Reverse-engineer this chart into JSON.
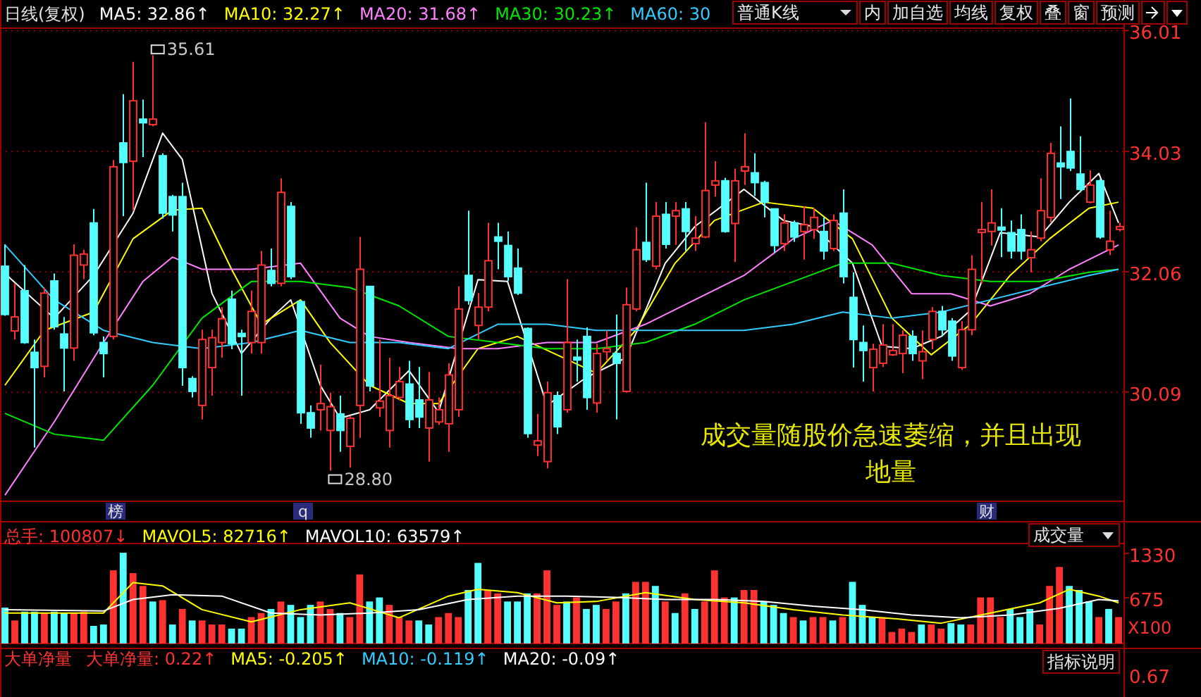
{
  "chart_data": [
    {
      "type": "candlestick",
      "title": "日线(复权)",
      "legend": "top left",
      "grid": "y",
      "categories": [
        null,
        null,
        null,
        null,
        null,
        null,
        null,
        null,
        null,
        null,
        null,
        null,
        null,
        null,
        null,
        null,
        null,
        null,
        null,
        null,
        null,
        null,
        null,
        null,
        null,
        null,
        null,
        null,
        null,
        null,
        null,
        null,
        null,
        null,
        null,
        null,
        null,
        null,
        null,
        null,
        null,
        null,
        null,
        null,
        null,
        null,
        null,
        null,
        null,
        null,
        null,
        null,
        null,
        null,
        null,
        null,
        null,
        null,
        null,
        null,
        null,
        null,
        null,
        null,
        null,
        null,
        null,
        null,
        null,
        null,
        null,
        null,
        null,
        null,
        null,
        null,
        null,
        null,
        null,
        null,
        null,
        null,
        null,
        null,
        null,
        null,
        null,
        null,
        null,
        null,
        null,
        null,
        null,
        null,
        null,
        null,
        null,
        null,
        null,
        null,
        null,
        null,
        null,
        null,
        null,
        null,
        null,
        null,
        null,
        null,
        null,
        null,
        null,
        null
      ],
      "ohlc": [
        [
          32.15,
          32.51,
          31.34,
          31.36
        ],
        [
          31.09,
          31.87,
          30.95,
          31.32
        ],
        [
          31.75,
          32.17,
          30.88,
          30.9
        ],
        [
          30.74,
          30.95,
          29.18,
          30.49
        ],
        [
          30.51,
          31.8,
          30.33,
          31.71
        ],
        [
          31.91,
          32.03,
          31.11,
          31.16
        ],
        [
          31.04,
          31.32,
          30.1,
          30.81
        ],
        [
          30.81,
          32.51,
          30.6,
          32.33
        ],
        [
          32.17,
          32.42,
          31.94,
          32.35
        ],
        [
          32.86,
          33.09,
          31.02,
          31.06
        ],
        [
          30.9,
          31.0,
          30.33,
          30.72
        ],
        [
          31.0,
          33.89,
          30.95,
          33.78
        ],
        [
          34.17,
          34.97,
          32.97,
          33.85
        ],
        [
          33.87,
          35.5,
          33.06,
          34.86
        ],
        [
          34.56,
          34.88,
          33.94,
          34.5
        ],
        [
          34.47,
          35.61,
          34.44,
          34.56
        ],
        [
          33.96,
          34.0,
          32.93,
          33.02
        ],
        [
          33.29,
          33.32,
          32.72,
          32.99
        ],
        [
          33.29,
          33.52,
          30.19,
          30.49
        ],
        [
          30.31,
          30.35,
          30.0,
          30.1
        ],
        [
          29.87,
          31.11,
          29.64,
          30.95
        ],
        [
          30.49,
          31.11,
          30.03,
          30.98
        ],
        [
          30.9,
          31.48,
          30.65,
          31.29
        ],
        [
          31.61,
          31.75,
          30.79,
          30.88
        ],
        [
          31.05,
          31.11,
          30.03,
          31.0
        ],
        [
          30.9,
          31.75,
          30.72,
          31.41
        ],
        [
          30.9,
          32.4,
          30.72,
          32.17
        ],
        [
          32.08,
          32.44,
          31.82,
          31.87
        ],
        [
          31.87,
          33.59,
          31.82,
          33.36
        ],
        [
          33.13,
          33.2,
          31.94,
          31.98
        ],
        [
          31.57,
          31.59,
          29.57,
          29.75
        ],
        [
          29.75,
          29.87,
          29.34,
          29.5
        ],
        [
          29.8,
          30.54,
          29.46,
          29.9
        ],
        [
          29.46,
          30.08,
          28.8,
          29.85
        ],
        [
          29.73,
          30.03,
          29.11,
          29.46
        ],
        [
          29.2,
          29.7,
          28.85,
          29.66
        ],
        [
          29.87,
          32.63,
          29.34,
          32.1
        ],
        [
          31.82,
          31.82,
          30.1,
          30.19
        ],
        [
          29.83,
          30.95,
          29.68,
          29.94
        ],
        [
          29.46,
          30.65,
          29.18,
          30.03
        ],
        [
          30.0,
          30.5,
          29.95,
          30.26
        ],
        [
          30.22,
          30.6,
          29.5,
          29.64
        ],
        [
          29.96,
          30.5,
          29.5,
          29.68
        ],
        [
          29.5,
          30.42,
          28.95,
          29.96
        ],
        [
          29.6,
          30.0,
          29.55,
          29.8
        ],
        [
          29.57,
          30.56,
          29.11,
          30.37
        ],
        [
          29.8,
          31.82,
          29.68,
          31.45
        ],
        [
          32.0,
          33.06,
          31.52,
          31.59
        ],
        [
          31.18,
          31.71,
          30.95,
          31.48
        ],
        [
          31.48,
          32.86,
          31.41,
          32.24
        ],
        [
          32.63,
          32.86,
          32.1,
          32.56
        ],
        [
          32.49,
          32.72,
          31.91,
          31.98
        ],
        [
          32.12,
          32.44,
          31.68,
          31.71
        ],
        [
          31.13,
          31.15,
          29.34,
          29.41
        ],
        [
          29.22,
          29.73,
          29.04,
          29.29
        ],
        [
          28.95,
          30.26,
          28.84,
          30.08
        ],
        [
          30.03,
          30.1,
          29.4,
          29.52
        ],
        [
          29.8,
          31.94,
          29.75,
          30.9
        ],
        [
          30.66,
          30.95,
          30.26,
          30.62
        ],
        [
          31.0,
          31.15,
          29.8,
          30.0
        ],
        [
          29.91,
          30.88,
          29.75,
          30.72
        ],
        [
          30.75,
          31.1,
          30.6,
          30.8
        ],
        [
          30.72,
          31.36,
          29.64,
          30.56
        ],
        [
          30.1,
          31.8,
          30.08,
          31.52
        ],
        [
          31.45,
          32.79,
          31.41,
          32.42
        ],
        [
          32.54,
          33.52,
          32.22,
          32.26
        ],
        [
          32.15,
          33.2,
          32.1,
          32.97
        ],
        [
          33.0,
          33.2,
          32.44,
          32.51
        ],
        [
          32.97,
          33.2,
          32.5,
          33.06
        ],
        [
          33.09,
          33.2,
          32.4,
          32.72
        ],
        [
          32.52,
          32.97,
          32.4,
          32.61
        ],
        [
          32.63,
          34.51,
          32.61,
          33.39
        ],
        [
          33.48,
          33.87,
          33.29,
          33.55
        ],
        [
          33.55,
          33.6,
          32.7,
          32.72
        ],
        [
          32.85,
          33.75,
          32.22,
          33.55
        ],
        [
          33.71,
          34.33,
          33.48,
          33.78
        ],
        [
          33.68,
          34.0,
          33.3,
          33.52
        ],
        [
          33.52,
          33.55,
          32.95,
          33.2
        ],
        [
          33.09,
          33.09,
          32.37,
          32.49
        ],
        [
          32.52,
          33.0,
          32.4,
          32.86
        ],
        [
          32.86,
          32.9,
          32.55,
          32.63
        ],
        [
          32.72,
          33.13,
          32.26,
          32.83
        ],
        [
          32.75,
          33.1,
          32.6,
          32.95
        ],
        [
          32.72,
          32.95,
          32.26,
          32.4
        ],
        [
          32.44,
          33.0,
          32.4,
          32.9
        ],
        [
          33.02,
          33.41,
          31.87,
          31.98
        ],
        [
          31.64,
          32.05,
          30.49,
          30.95
        ],
        [
          30.9,
          31.18,
          30.26,
          30.77
        ],
        [
          30.49,
          30.88,
          30.1,
          30.79
        ],
        [
          30.56,
          31.2,
          30.5,
          30.86
        ],
        [
          30.7,
          31.2,
          30.68,
          30.77
        ],
        [
          30.72,
          31.1,
          30.4,
          31.02
        ],
        [
          31.0,
          31.1,
          30.6,
          30.72
        ],
        [
          30.6,
          31.1,
          30.3,
          30.75
        ],
        [
          30.95,
          31.48,
          30.79,
          31.41
        ],
        [
          31.41,
          31.5,
          31.0,
          31.11
        ],
        [
          31.25,
          31.3,
          30.6,
          30.68
        ],
        [
          30.49,
          31.25,
          30.45,
          31.11
        ],
        [
          31.11,
          32.33,
          31.02,
          32.1
        ],
        [
          32.72,
          33.2,
          31.87,
          32.75
        ],
        [
          32.72,
          33.41,
          32.49,
          32.86
        ],
        [
          32.79,
          33.1,
          32.3,
          32.75
        ],
        [
          32.7,
          32.9,
          32.28,
          32.4
        ],
        [
          32.75,
          33.0,
          32.26,
          32.4
        ],
        [
          32.29,
          32.72,
          32.05,
          32.42
        ],
        [
          32.61,
          33.59,
          32.56,
          33.06
        ],
        [
          32.95,
          34.17,
          32.86,
          34.0
        ],
        [
          33.84,
          34.44,
          33.25,
          33.78
        ],
        [
          34.03,
          34.9,
          33.71,
          33.76
        ],
        [
          33.66,
          34.28,
          33.36,
          33.41
        ],
        [
          33.2,
          33.72,
          33.18,
          33.48
        ],
        [
          33.55,
          33.58,
          32.6,
          32.63
        ],
        [
          32.42,
          33.06,
          32.33,
          32.56
        ],
        [
          32.76,
          32.86,
          32.72,
          32.8
        ]
      ],
      "series": [
        {
          "name": "MA5: 32.86↑",
          "type": "line",
          "color": "#ffffff",
          "values": [
            32.03,
            null,
            null,
            null,
            null,
            31.3,
            null,
            null,
            null,
            32.0,
            null,
            null,
            null,
            33.02,
            null,
            null,
            34.33,
            null,
            33.9,
            null,
            null,
            31.71,
            null,
            null,
            30.72,
            null,
            null,
            31.3,
            null,
            31.6,
            null,
            null,
            30.2,
            null,
            29.66,
            null,
            null,
            29.8,
            null,
            null,
            null,
            30.44,
            null,
            null,
            29.76,
            null,
            null,
            null,
            31.93,
            null,
            null,
            31.9,
            null,
            null,
            null,
            29.87,
            null,
            null,
            null,
            30.33,
            null,
            null,
            null,
            30.65,
            null,
            null,
            null,
            32.2,
            null,
            null,
            32.8,
            null,
            null,
            null,
            null,
            33.41,
            null,
            null,
            null,
            32.9,
            null,
            null,
            32.8,
            null,
            null,
            null,
            32.2,
            null,
            null,
            30.84,
            null,
            null,
            30.8,
            null,
            null,
            31.0,
            null,
            null,
            31.43,
            null,
            null,
            32.7,
            null,
            null,
            null,
            32.63,
            null,
            null,
            33.2,
            null,
            null,
            33.67,
            null,
            32.86
          ]
        },
        {
          "name": "MA10: 32.27↑",
          "type": "line",
          "color": "#ffff00",
          "values": [
            30.2,
            null,
            null,
            null,
            31.1,
            null,
            null,
            null,
            null,
            31.4,
            null,
            null,
            null,
            32.6,
            null,
            null,
            null,
            33.07,
            null,
            null,
            33.1,
            null,
            null,
            32.1,
            null,
            null,
            31.2,
            null,
            null,
            null,
            31.6,
            null,
            null,
            30.9,
            null,
            null,
            null,
            30.2,
            null,
            null,
            null,
            29.9,
            null,
            null,
            29.9,
            null,
            null,
            null,
            30.8,
            null,
            null,
            null,
            31.0,
            null,
            null,
            null,
            30.7,
            null,
            null,
            null,
            30.4,
            null,
            null,
            null,
            31.1,
            null,
            null,
            null,
            32.2,
            null,
            null,
            null,
            32.9,
            null,
            null,
            null,
            null,
            33.2,
            null,
            null,
            null,
            null,
            33.1,
            null,
            null,
            null,
            32.6,
            null,
            null,
            null,
            31.3,
            null,
            null,
            null,
            30.7,
            null,
            null,
            null,
            31.2,
            null,
            null,
            null,
            32.0,
            null,
            null,
            null,
            32.6,
            null,
            null,
            null,
            33.1,
            null,
            null,
            33.2
          ]
        },
        {
          "name": "MA20: 31.68↑",
          "type": "line",
          "color": "#ff80ff",
          "values": [
            28.4,
            null,
            null,
            null,
            null,
            29.6,
            null,
            null,
            null,
            null,
            30.9,
            null,
            null,
            null,
            31.9,
            null,
            null,
            32.3,
            null,
            null,
            32.1,
            null,
            null,
            null,
            null,
            32.1,
            null,
            null,
            null,
            null,
            32.2,
            null,
            null,
            null,
            31.3,
            null,
            null,
            31.0,
            null,
            null,
            null,
            30.9,
            null,
            null,
            null,
            null,
            30.8,
            null,
            null,
            null,
            30.8,
            null,
            null,
            null,
            null,
            30.9,
            null,
            null,
            null,
            null,
            30.9,
            null,
            null,
            null,
            null,
            31.2,
            null,
            null,
            null,
            null,
            31.6,
            null,
            null,
            null,
            null,
            32.0,
            null,
            null,
            null,
            null,
            32.6,
            null,
            null,
            null,
            32.9,
            null,
            null,
            null,
            32.5,
            null,
            null,
            null,
            31.7,
            null,
            null,
            null,
            31.7,
            null,
            null,
            null,
            31.5,
            null,
            null,
            null,
            31.7,
            null,
            null,
            null,
            32.1,
            null,
            null,
            null,
            null,
            32.5
          ]
        },
        {
          "name": "MA30: 30.23↑",
          "type": "line",
          "color": "#00e600",
          "values": [
            29.74,
            null,
            null,
            null,
            null,
            29.4,
            null,
            null,
            null,
            null,
            29.3,
            null,
            null,
            null,
            null,
            30.2,
            null,
            null,
            null,
            null,
            31.3,
            null,
            null,
            null,
            null,
            31.9,
            null,
            null,
            null,
            null,
            31.9,
            null,
            null,
            null,
            null,
            31.8,
            null,
            null,
            null,
            null,
            31.5,
            null,
            null,
            null,
            null,
            31.0,
            null,
            null,
            null,
            null,
            30.9,
            null,
            null,
            null,
            null,
            30.8,
            null,
            null,
            null,
            null,
            30.8,
            null,
            null,
            null,
            null,
            30.9,
            null,
            null,
            null,
            null,
            31.2,
            null,
            null,
            null,
            null,
            31.6,
            null,
            null,
            null,
            null,
            31.9,
            null,
            null,
            null,
            null,
            32.2,
            null,
            null,
            null,
            null,
            32.2,
            null,
            null,
            null,
            null,
            32.0,
            null,
            null,
            null,
            null,
            31.9,
            null,
            null,
            null,
            null,
            31.9,
            null,
            null,
            null,
            null,
            32.05,
            null,
            null,
            32.1
          ]
        },
        {
          "name": "MA60: 30",
          "type": "line",
          "color": "#33ccff",
          "values": [
            32.5,
            null,
            null,
            null,
            null,
            31.6,
            null,
            null,
            null,
            null,
            31.1,
            null,
            null,
            null,
            null,
            30.9,
            null,
            null,
            null,
            null,
            30.8,
            null,
            null,
            null,
            null,
            30.9,
            null,
            null,
            null,
            null,
            31.1,
            null,
            null,
            null,
            null,
            30.9,
            null,
            null,
            null,
            null,
            30.9,
            null,
            null,
            null,
            null,
            30.8,
            null,
            null,
            null,
            null,
            31.2,
            null,
            null,
            null,
            null,
            31.2,
            null,
            null,
            null,
            null,
            31.1,
            null,
            null,
            null,
            null,
            31.1,
            null,
            null,
            null,
            null,
            31.1,
            null,
            null,
            null,
            null,
            31.1,
            null,
            null,
            null,
            null,
            31.2,
            null,
            null,
            null,
            null,
            31.4,
            null,
            null,
            null,
            null,
            31.3,
            null,
            null,
            null,
            null,
            31.4,
            null,
            null,
            null,
            null,
            31.6,
            null,
            null,
            null,
            null,
            31.8,
            null,
            null,
            null,
            null,
            32.0,
            null,
            null,
            32.1
          ]
        }
      ],
      "ylim": [
        28.3,
        36.05
      ],
      "yticks": [
        30.09,
        32.06,
        34.03,
        36.01
      ],
      "annotations": [
        "35.61",
        "28.80",
        "成交量随股价急速萎缩，并且出现地量",
        "榜",
        "q",
        "财",
        "普通K线",
        "内",
        "加自选",
        "均线",
        "复权",
        "叠",
        "窗",
        "预测"
      ]
    },
    {
      "type": "bar",
      "title": "总手: 100807↓",
      "legend": "top left",
      "categories": [
        null,
        null,
        null,
        null,
        null,
        null,
        null,
        null,
        null,
        null,
        null,
        null,
        null,
        null,
        null,
        null,
        null,
        null,
        null,
        null,
        null,
        null,
        null,
        null,
        null,
        null,
        null,
        null,
        null,
        null,
        null,
        null,
        null,
        null,
        null,
        null,
        null,
        null,
        null,
        null,
        null,
        null,
        null,
        null,
        null,
        null,
        null,
        null,
        null,
        null,
        null,
        null,
        null,
        null,
        null,
        null,
        null,
        null,
        null,
        null,
        null,
        null,
        null,
        null,
        null,
        null,
        null,
        null,
        null,
        null,
        null,
        null,
        null,
        null,
        null,
        null,
        null,
        null,
        null,
        null,
        null,
        null,
        null,
        null,
        null,
        null,
        null,
        null,
        null,
        null,
        null,
        null,
        null,
        null,
        null,
        null,
        null,
        null,
        null,
        null,
        null,
        null,
        null,
        null,
        null,
        null,
        null,
        null,
        null,
        null,
        null,
        null,
        null,
        null
      ],
      "series": [
        {
          "type": "bar",
          "values": [
            530,
            340,
            470,
            470,
            450,
            470,
            450,
            450,
            470,
            260,
            280,
            1080,
            1340,
            1040,
            850,
            620,
            640,
            280,
            510,
            340,
            340,
            280,
            280,
            220,
            220,
            390,
            450,
            510,
            620,
            570,
            390,
            570,
            620,
            510,
            450,
            390,
            1020,
            620,
            680,
            570,
            390,
            340,
            340,
            280,
            390,
            450,
            390,
            790,
            1190,
            790,
            740,
            620,
            620,
            740,
            740,
            1080,
            570,
            620,
            680,
            510,
            570,
            510,
            620,
            740,
            910,
            910,
            850,
            620,
            450,
            740,
            510,
            620,
            1080,
            680,
            680,
            790,
            790,
            620,
            570,
            450,
            390,
            340,
            390,
            390,
            340,
            390,
            910,
            570,
            390,
            390,
            170,
            220,
            170,
            280,
            280,
            220,
            300,
            280,
            280,
            680,
            680,
            390,
            510,
            390,
            510,
            280,
            850,
            1130,
            850,
            790,
            620,
            390,
            510,
            390
          ],
          "colors": [
            "#54ffff",
            "#ff3232",
            "#54ffff",
            "#54ffff",
            "#ff3232",
            "#54ffff",
            "#54ffff",
            "#ff3232",
            "#ff3232",
            "#54ffff",
            "#54ffff",
            "#ff3232",
            "#54ffff",
            "#ff3232",
            "#ff3232",
            "#54ffff",
            "#ff3232",
            "#54ffff",
            "#ff3232",
            "#54ffff",
            "#ff3232",
            "#ff3232",
            "#ff3232",
            "#54ffff",
            "#54ffff",
            "#ff3232",
            "#ff3232",
            "#54ffff",
            "#ff3232",
            "#54ffff",
            "#54ffff",
            "#54ffff",
            "#ff3232",
            "#ff3232",
            "#54ffff",
            "#ff3232",
            "#ff3232",
            "#54ffff",
            "#54ffff",
            "#ff3232",
            "#ff3232",
            "#ff3232",
            "#54ffff",
            "#54ffff",
            "#ff3232",
            "#ff3232",
            "#ff3232",
            "#54ffff",
            "#54ffff",
            "#ff3232",
            "#ff3232",
            "#54ffff",
            "#54ffff",
            "#54ffff",
            "#ff3232",
            "#ff3232",
            "#ff3232",
            "#54ffff",
            "#ff3232",
            "#54ffff",
            "#54ffff",
            "#ff3232",
            "#ff3232",
            "#54ffff",
            "#ff3232",
            "#ff3232",
            "#54ffff",
            "#ff3232",
            "#54ffff",
            "#ff3232",
            "#54ffff",
            "#ff3232",
            "#ff3232",
            "#ff3232",
            "#54ffff",
            "#ff3232",
            "#ff3232",
            "#54ffff",
            "#54ffff",
            "#54ffff",
            "#ff3232",
            "#54ffff",
            "#ff3232",
            "#ff3232",
            "#54ffff",
            "#ff3232",
            "#54ffff",
            "#54ffff",
            "#54ffff",
            "#ff3232",
            "#ff3232",
            "#ff3232",
            "#ff3232",
            "#54ffff",
            "#ff3232",
            "#ff3232",
            "#54ffff",
            "#54ffff",
            "#ff3232",
            "#ff3232",
            "#ff3232",
            "#ff3232",
            "#54ffff",
            "#54ffff",
            "#54ffff",
            "#ff3232",
            "#ff3232",
            "#ff3232",
            "#54ffff",
            "#54ffff",
            "#54ffff",
            "#ff3232",
            "#54ffff",
            "#ff3232"
          ]
        },
        {
          "name": "MAVOL5: 82716↑",
          "type": "line",
          "color": "#ffff00",
          "values": [
            450,
            null,
            null,
            null,
            null,
            null,
            null,
            null,
            null,
            null,
            450,
            null,
            null,
            900,
            null,
            null,
            850,
            null,
            null,
            null,
            500,
            null,
            null,
            null,
            null,
            320,
            null,
            null,
            null,
            null,
            500,
            null,
            null,
            null,
            null,
            600,
            null,
            null,
            null,
            null,
            380,
            null,
            null,
            null,
            null,
            700,
            null,
            null,
            800,
            null,
            null,
            null,
            750,
            null,
            null,
            null,
            600,
            null,
            null,
            null,
            620,
            null,
            null,
            null,
            null,
            750,
            null,
            null,
            null,
            null,
            650,
            null,
            null,
            null,
            null,
            600,
            null,
            null,
            null,
            null,
            500,
            null,
            null,
            null,
            null,
            420,
            null,
            null,
            null,
            null,
            370,
            null,
            null,
            null,
            null,
            300,
            null,
            null,
            null,
            null,
            450,
            null,
            null,
            null,
            null,
            600,
            null,
            null,
            800,
            null,
            null,
            700,
            null,
            600
          ]
        },
        {
          "name": "MAVOL10: 63579↑",
          "type": "line",
          "color": "#ffffff",
          "values": [
            500,
            null,
            null,
            null,
            null,
            null,
            null,
            null,
            null,
            null,
            480,
            null,
            null,
            650,
            null,
            null,
            null,
            720,
            null,
            null,
            null,
            null,
            700,
            null,
            null,
            null,
            null,
            450,
            null,
            null,
            null,
            null,
            420,
            null,
            null,
            null,
            null,
            450,
            null,
            null,
            null,
            null,
            500,
            null,
            null,
            null,
            null,
            650,
            null,
            null,
            null,
            null,
            700,
            null,
            null,
            null,
            null,
            700,
            null,
            null,
            null,
            null,
            680,
            null,
            null,
            null,
            null,
            650,
            null,
            null,
            null,
            null,
            650,
            null,
            null,
            null,
            null,
            620,
            null,
            null,
            null,
            null,
            550,
            null,
            null,
            null,
            null,
            500,
            null,
            null,
            null,
            null,
            420,
            null,
            null,
            null,
            null,
            380,
            null,
            null,
            null,
            null,
            420,
            null,
            null,
            null,
            null,
            520,
            null,
            null,
            null,
            650,
            null,
            630
          ]
        }
      ],
      "ylim": [
        0,
        1476
      ],
      "yticks": [
        675,
        1330
      ],
      "annotations": [
        "X100",
        "成交量"
      ]
    },
    {
      "type": "other",
      "title": "大单净量",
      "annotations": [
        "大单净量: 0.22↑",
        "MA5: -0.205↑",
        "MA10: -0.119↑",
        "MA20: -0.09↑",
        "0.67",
        "指标说明"
      ]
    }
  ]
}
